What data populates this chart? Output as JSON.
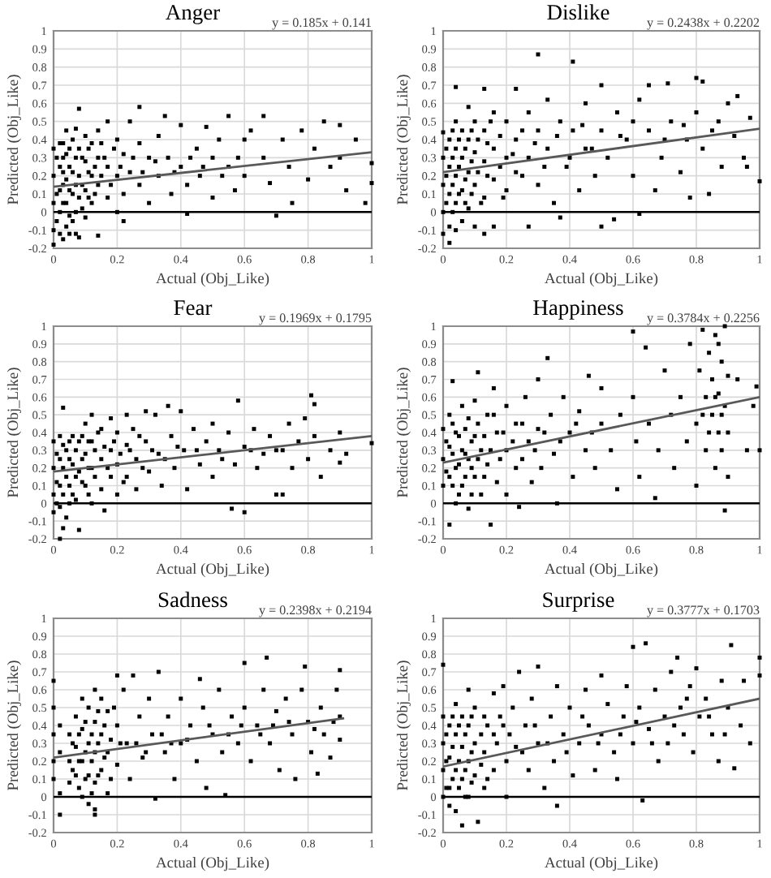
{
  "chart_data": [
    {
      "type": "scatter",
      "title": "Anger",
      "xlabel": "Actual (Obj_Like)",
      "ylabel": "Predicted (Obj_Like)",
      "annotations": [
        "y = 0.185x + 0.141"
      ],
      "xlim": [
        0,
        1
      ],
      "ylim": [
        -0.2,
        1
      ],
      "xticks": [
        0,
        0.2,
        0.4,
        0.6,
        0.8,
        1
      ],
      "yticks": [
        -0.2,
        -0.1,
        0,
        0.1,
        0.2,
        0.3,
        0.4,
        0.5,
        0.6,
        0.7,
        0.8,
        0.9,
        1
      ],
      "grid": true,
      "marker": "square",
      "ref_lines": [
        {
          "axis": "y",
          "value": 0,
          "color": "#000000"
        }
      ],
      "series": [
        {
          "color": "#000000",
          "x": [
            0,
            0,
            0,
            0,
            0,
            0.02,
            0.02,
            0.02,
            0.02,
            0.02,
            0.03,
            0.03,
            0.03,
            0.04,
            0.04,
            0.04,
            0.04,
            0.04,
            0.06,
            0.06,
            0.06,
            0.06,
            0.07,
            0.07,
            0.07,
            0.07,
            0.07,
            0.08,
            0.08,
            0.1,
            0.1,
            0.1,
            0.1,
            0.12,
            0.12,
            0.12,
            0.14,
            0.14,
            0.14,
            0.14,
            0.17,
            0.17,
            0.17,
            0.2,
            0.2,
            0.2,
            0.22,
            0.22,
            0.22,
            0.24,
            0.24,
            0.27,
            0.27,
            0.27,
            0.3,
            0.3,
            0.33,
            0.33,
            0.35,
            0.36,
            0.37,
            0.4,
            0.4,
            0.42,
            0.42,
            0.45,
            0.46,
            0.48,
            0.5,
            0.5,
            0.52,
            0.55,
            0.55,
            0.57,
            0.6,
            0.6,
            0.62,
            0.66,
            0.66,
            0.68,
            0.7,
            0.72,
            0.74,
            0.75,
            0.78,
            0.8,
            0.82,
            0.85,
            0.87,
            0.9,
            0.9,
            0.92,
            0.95,
            0.98,
            1,
            1,
            0.01,
            0.01,
            0.01,
            0.03,
            0.03,
            0.03,
            0.05,
            0.05,
            0.05,
            0.05,
            0.05,
            0.08,
            0.08,
            0.08,
            0.09,
            0.09,
            0.09,
            0.11,
            0.11,
            0.11,
            0.13,
            0.13,
            0.15,
            0.15,
            0.16,
            0.18,
            0.19,
            0.21,
            0.25,
            0.28,
            0.32,
            0.38,
            0.43,
            0.47,
            0.53,
            0.58
          ],
          "values": [
            0.35,
            0.2,
            0.05,
            -0.1,
            -0.18,
            0.38,
            0.25,
            0.12,
            0,
            -0.12,
            0.3,
            0.15,
            -0.15,
            0.45,
            0.32,
            0.18,
            0.05,
            -0.08,
            0.4,
            0.22,
            0.1,
            -0.05,
            0.46,
            0.3,
            0.15,
            0,
            -0.12,
            0.57,
            -0.14,
            0.42,
            0.28,
            0.12,
            -0.03,
            0.38,
            0.2,
            0.05,
            0.45,
            0.3,
            0.15,
            -0.13,
            0.5,
            0.25,
            0.08,
            0.4,
            0.2,
            0,
            0.32,
            0.1,
            -0.05,
            0.5,
            0.22,
            0.58,
            0.38,
            0.15,
            0.3,
            0.05,
            0.42,
            0.2,
            0.53,
            0.3,
            0.1,
            0.48,
            0.25,
            -0.01,
            0.15,
            0.35,
            0.2,
            0.47,
            0.3,
            0.08,
            0.4,
            0.53,
            0.25,
            0.12,
            0.4,
            0.2,
            0.45,
            0.53,
            0.3,
            0.16,
            -0.02,
            0.4,
            0.25,
            0.05,
            0.45,
            0.18,
            0.35,
            0.5,
            0.25,
            0.48,
            0.3,
            0.12,
            0.4,
            0.05,
            0.27,
            0.16,
            0.3,
            0.1,
            -0.05,
            0.38,
            0.22,
            0.05,
            0.35,
            0.25,
            0.12,
            -0.02,
            -0.12,
            0.35,
            0.2,
            0.08,
            0.3,
            0.15,
            0.02,
            0.35,
            0.22,
            0.08,
            0.25,
            0.1,
            0.38,
            0.2,
            0.3,
            0.15,
            0.35,
            0.25,
            0.3,
            0.22,
            0.28,
            0.22,
            0.3,
            0.25,
            0.2,
            0.3
          ]
        },
        {
          "type": "line",
          "marker": "none",
          "color": "#595959",
          "x": [
            0,
            1
          ],
          "values": [
            0.14,
            0.33
          ]
        }
      ]
    },
    {
      "type": "scatter",
      "title": "Dislike",
      "xlabel": "Actual (Obj_Like)",
      "ylabel": "Predicted (Obj_Like)",
      "annotations": [
        "y = 0.2438x + 0.2202"
      ],
      "xlim": [
        0,
        1
      ],
      "ylim": [
        -0.2,
        1
      ],
      "xticks": [
        0,
        0.2,
        0.4,
        0.6,
        0.8,
        1
      ],
      "yticks": [
        -0.2,
        -0.1,
        0,
        0.1,
        0.2,
        0.3,
        0.4,
        0.5,
        0.6,
        0.7,
        0.8,
        0.9,
        1
      ],
      "grid": true,
      "marker": "square",
      "ref_lines": [
        {
          "axis": "y",
          "value": 0,
          "color": "#000000"
        }
      ],
      "series": [
        {
          "color": "#000000",
          "x": [
            0,
            0,
            0,
            0,
            0,
            0.02,
            0.02,
            0.02,
            0.02,
            0.02,
            0.04,
            0.04,
            0.04,
            0.04,
            0.04,
            0.04,
            0.06,
            0.06,
            0.06,
            0.06,
            0.08,
            0.08,
            0.08,
            0.08,
            0.1,
            0.1,
            0.1,
            0.1,
            0.13,
            0.13,
            0.13,
            0.13,
            0.13,
            0.16,
            0.16,
            0.16,
            0.16,
            0.2,
            0.2,
            0.2,
            0.23,
            0.23,
            0.23,
            0.27,
            0.27,
            0.27,
            0.3,
            0.3,
            0.3,
            0.33,
            0.33,
            0.35,
            0.37,
            0.37,
            0.39,
            0.41,
            0.41,
            0.43,
            0.45,
            0.45,
            0.48,
            0.5,
            0.5,
            0.5,
            0.52,
            0.54,
            0.55,
            0.58,
            0.6,
            0.62,
            0.62,
            0.65,
            0.65,
            0.67,
            0.69,
            0.71,
            0.72,
            0.75,
            0.77,
            0.78,
            0.8,
            0.8,
            0.82,
            0.82,
            0.84,
            0.87,
            0.88,
            0.9,
            0.92,
            0.93,
            0.95,
            0.96,
            0.97,
            1,
            0.01,
            0.01,
            0.01,
            0.03,
            0.03,
            0.03,
            0.03,
            0.05,
            0.05,
            0.05,
            0.07,
            0.07,
            0.07,
            0.09,
            0.09,
            0.09,
            0.11,
            0.11,
            0.12,
            0.14,
            0.14,
            0.15,
            0.18,
            0.18,
            0.19,
            0.22,
            0.25,
            0.25,
            0.29,
            0.32,
            0.36,
            0.4,
            0.44,
            0.47,
            0.56,
            0.6,
            0.7,
            0.76,
            0.85
          ],
          "values": [
            0.44,
            0.3,
            0.15,
            0,
            -0.12,
            0.4,
            0.25,
            0.1,
            -0.08,
            -0.17,
            0.69,
            0.5,
            0.35,
            0.2,
            0.05,
            -0.1,
            0.45,
            0.3,
            0.12,
            -0.05,
            0.58,
            0.4,
            0.22,
            0.02,
            0.5,
            0.33,
            0.15,
            -0.08,
            0.68,
            0.45,
            0.28,
            0.08,
            -0.12,
            0.55,
            0.35,
            0.18,
            -0.08,
            0.5,
            0.3,
            0.12,
            0.68,
            0.4,
            0.22,
            0.55,
            0.3,
            -0.08,
            0.87,
            0.45,
            0.15,
            0.62,
            0.35,
            0.05,
            0.5,
            -0.03,
            0.25,
            0.83,
            0.45,
            0.12,
            0.6,
            0.35,
            0.2,
            0.7,
            0.45,
            -0.08,
            0.3,
            -0.04,
            0.55,
            0.4,
            0.2,
            -0.01,
            0.62,
            0.7,
            0.45,
            0.12,
            0.3,
            0.71,
            0.5,
            0.22,
            0.4,
            0.08,
            0.74,
            0.55,
            0.72,
            0.35,
            0.1,
            0.5,
            0.25,
            0.6,
            0.42,
            0.64,
            0.3,
            0.25,
            0.52,
            0.17,
            0.35,
            0.2,
            0.05,
            0.45,
            0.3,
            0.15,
            0,
            0.4,
            0.25,
            0.1,
            0.35,
            0.18,
            0.05,
            0.45,
            0.28,
            0.1,
            0.4,
            0.22,
            0.05,
            0.38,
            0.2,
            0.5,
            0.42,
            0.25,
            0.08,
            0.32,
            0.45,
            0.2,
            0.38,
            0.25,
            0.42,
            0.3,
            0.48,
            0.35,
            0.42,
            0.5,
            0.4,
            0.48,
            0.45
          ]
        },
        {
          "type": "line",
          "marker": "none",
          "color": "#595959",
          "x": [
            0,
            1
          ],
          "values": [
            0.22,
            0.46
          ]
        }
      ]
    },
    {
      "type": "scatter",
      "title": "Fear",
      "xlabel": "Actual (Obj_Like)",
      "ylabel": "Predicted (Obj_Like)",
      "annotations": [
        "y = 0.1969x + 0.1795"
      ],
      "xlim": [
        0,
        1
      ],
      "ylim": [
        -0.2,
        1
      ],
      "xticks": [
        0,
        0.2,
        0.4,
        0.6,
        0.8,
        1
      ],
      "yticks": [
        -0.2,
        -0.1,
        0,
        0.1,
        0.2,
        0.3,
        0.4,
        0.5,
        0.6,
        0.7,
        0.8,
        0.9,
        1
      ],
      "grid": true,
      "marker": "square",
      "ref_lines": [
        {
          "axis": "y",
          "value": 0,
          "color": "#000000"
        }
      ],
      "series": [
        {
          "color": "#000000",
          "x": [
            0,
            0,
            0,
            0,
            0.02,
            0.02,
            0.02,
            0.02,
            0.02,
            0.03,
            0.03,
            0.04,
            0.04,
            0.04,
            0.06,
            0.06,
            0.06,
            0.08,
            0.08,
            0.08,
            0.1,
            0.1,
            0.1,
            0.12,
            0.12,
            0.12,
            0.12,
            0.15,
            0.15,
            0.15,
            0.16,
            0.18,
            0.18,
            0.18,
            0.2,
            0.2,
            0.2,
            0.23,
            0.23,
            0.23,
            0.25,
            0.26,
            0.26,
            0.29,
            0.29,
            0.3,
            0.32,
            0.33,
            0.34,
            0.36,
            0.37,
            0.38,
            0.4,
            0.41,
            0.42,
            0.44,
            0.46,
            0.48,
            0.5,
            0.5,
            0.52,
            0.55,
            0.56,
            0.57,
            0.58,
            0.6,
            0.6,
            0.63,
            0.64,
            0.66,
            0.68,
            0.7,
            0.72,
            0.72,
            0.74,
            0.75,
            0.77,
            0.79,
            0.8,
            0.81,
            0.82,
            0.82,
            0.84,
            0.87,
            0.9,
            0.9,
            0.92,
            1,
            0.01,
            0.01,
            0.01,
            0.03,
            0.03,
            0.03,
            0.05,
            0.05,
            0.05,
            0.05,
            0.07,
            0.07,
            0.07,
            0.09,
            0.09,
            0.09,
            0.11,
            0.11,
            0.11,
            0.13,
            0.13,
            0.14,
            0.16,
            0.17,
            0.19,
            0.21,
            0.22,
            0.24,
            0.27,
            0.28,
            0.31,
            0.35,
            0.39,
            0.45,
            0.53,
            0.62,
            0.7
          ],
          "values": [
            0.35,
            0.2,
            0.05,
            -0.05,
            0.38,
            0.25,
            0.1,
            -0.02,
            -0.2,
            0.54,
            -0.14,
            0.3,
            0.15,
            -0.08,
            0.38,
            0.22,
            0.05,
            0.35,
            0.18,
            -0.15,
            0.45,
            0.28,
            0.1,
            0.5,
            0.35,
            0.2,
            0,
            0.42,
            0.25,
            0.08,
            -0.04,
            0.48,
            0.3,
            0.15,
            0.4,
            0.22,
            0.05,
            0.5,
            0.33,
            0.15,
            0.42,
            0.25,
            0.08,
            0.52,
            0.35,
            0.18,
            0.5,
            0.28,
            0.1,
            0.55,
            0.38,
            0.2,
            0.52,
            0.3,
            0.08,
            0.42,
            0.22,
            0.35,
            0.45,
            0.15,
            0.3,
            0.4,
            -0.03,
            0.22,
            0.58,
            -0.05,
            0.32,
            0.42,
            0.2,
            0.28,
            0.38,
            0.05,
            0.05,
            0.3,
            0.45,
            0.2,
            0.35,
            0.48,
            0.25,
            0.61,
            0.56,
            0.38,
            0.15,
            0.3,
            0.23,
            0.4,
            0.28,
            0.34,
            0.28,
            0.12,
            0,
            0.33,
            0.2,
            0.05,
            0.35,
            0.25,
            0.1,
            0,
            0.3,
            0.15,
            0.02,
            0.38,
            0.25,
            0.12,
            0.35,
            0.2,
            0.05,
            0.3,
            0.15,
            0.4,
            0.32,
            0.2,
            0.35,
            0.28,
            0.12,
            0.3,
            0.38,
            0.2,
            0.3,
            0.25,
            0.32,
            0.3,
            0.25,
            0.3,
            0.3
          ]
        },
        {
          "type": "line",
          "marker": "none",
          "color": "#595959",
          "x": [
            0,
            1
          ],
          "values": [
            0.18,
            0.38
          ]
        }
      ]
    },
    {
      "type": "scatter",
      "title": "Happiness",
      "xlabel": "Actual (Obj_Like)",
      "ylabel": "Predicted (Obj_Like)",
      "annotations": [
        "y = 0.3784x + 0.2256"
      ],
      "xlim": [
        0,
        1
      ],
      "ylim": [
        -0.2,
        1
      ],
      "xticks": [
        0,
        0.2,
        0.4,
        0.6,
        0.8,
        1
      ],
      "yticks": [
        -0.2,
        -0.1,
        0,
        0.1,
        0.2,
        0.3,
        0.4,
        0.5,
        0.6,
        0.7,
        0.8,
        0.9,
        1
      ],
      "grid": true,
      "marker": "square",
      "ref_lines": [
        {
          "axis": "y",
          "value": 0,
          "color": "#000000"
        }
      ],
      "series": [
        {
          "color": "#000000",
          "x": [
            0,
            0,
            0,
            0.02,
            0.02,
            0.02,
            0.02,
            0.03,
            0.04,
            0.04,
            0.04,
            0.06,
            0.06,
            0.06,
            0.08,
            0.08,
            0.08,
            0.1,
            0.1,
            0.1,
            0.11,
            0.12,
            0.12,
            0.14,
            0.14,
            0.15,
            0.16,
            0.17,
            0.17,
            0.2,
            0.2,
            0.2,
            0.23,
            0.23,
            0.24,
            0.26,
            0.27,
            0.28,
            0.3,
            0.3,
            0.31,
            0.33,
            0.34,
            0.35,
            0.36,
            0.38,
            0.4,
            0.41,
            0.43,
            0.45,
            0.46,
            0.48,
            0.5,
            0.5,
            0.53,
            0.55,
            0.56,
            0.6,
            0.6,
            0.61,
            0.62,
            0.64,
            0.65,
            0.67,
            0.68,
            0.7,
            0.72,
            0.73,
            0.75,
            0.77,
            0.78,
            0.8,
            0.8,
            0.81,
            0.82,
            0.83,
            0.83,
            0.84,
            0.85,
            0.85,
            0.86,
            0.86,
            0.87,
            0.87,
            0.88,
            0.88,
            0.89,
            0.89,
            0.89,
            0.9,
            0.9,
            0.93,
            0.96,
            0.98,
            0.99,
            1,
            0.01,
            0.01,
            0.03,
            0.03,
            0.03,
            0.05,
            0.05,
            0.05,
            0.07,
            0.07,
            0.07,
            0.09,
            0.09,
            0.09,
            0.11,
            0.11,
            0.13,
            0.13,
            0.15,
            0.16,
            0.18,
            0.19,
            0.22,
            0.25,
            0.25,
            0.29,
            0.32,
            0.37,
            0.42,
            0.47,
            0.82,
            0.84,
            0.86,
            0.87,
            0.88,
            0.9
          ],
          "values": [
            0.42,
            0.25,
            0.1,
            0.5,
            0.32,
            0.15,
            -0.12,
            0.69,
            0.4,
            0.2,
            0,
            0.55,
            0.3,
            0.1,
            0.48,
            0.25,
            -0.03,
            0.58,
            0.38,
            0.15,
            0.74,
            0.3,
            0.05,
            0.5,
            0.22,
            -0.12,
            0.65,
            0.4,
            0.12,
            0.55,
            0.3,
            0.05,
            0.45,
            0.2,
            -0.02,
            0.6,
            0.35,
            0.12,
            0.7,
            0.42,
            0.2,
            0.82,
            0.5,
            0.28,
            0,
            0.6,
            0.4,
            0.15,
            0.52,
            0.3,
            0.72,
            0.2,
            0.45,
            0.65,
            0.3,
            0.08,
            0.5,
            0.97,
            0.6,
            0.35,
            0.15,
            0.88,
            0.45,
            0.03,
            0.3,
            0.75,
            0.5,
            0.2,
            0.6,
            0.35,
            0.9,
            0.1,
            0.45,
            0.75,
            0.98,
            0.3,
            0.6,
            0.85,
            0.5,
            0.7,
            0.2,
            0.95,
            0.4,
            0.62,
            0.8,
            0.3,
            1,
            -0.04,
            0.55,
            0.72,
            0.15,
            0.7,
            0.3,
            0.55,
            0.66,
            0.3,
            0.35,
            0.18,
            0.45,
            0.28,
            0.1,
            0.38,
            0.22,
            0.05,
            0.42,
            0.28,
            0.15,
            0.35,
            0.2,
            0.05,
            0.45,
            0.25,
            0.38,
            0.15,
            0.3,
            0.5,
            0.25,
            0.4,
            0.35,
            0.45,
            0.25,
            0.3,
            0.4,
            0.35,
            0.45,
            0.4,
            0.5,
            0.4,
            0.6,
            0.9,
            0.5,
            0.4
          ]
        },
        {
          "type": "line",
          "marker": "none",
          "color": "#595959",
          "x": [
            0,
            1
          ],
          "values": [
            0.23,
            0.6
          ]
        }
      ]
    },
    {
      "type": "scatter",
      "title": "Sadness",
      "xlabel": "Actual (Obj_Like)",
      "ylabel": "Predicted (Obj_Like)",
      "annotations": [
        "y = 0.2398x + 0.2194"
      ],
      "xlim": [
        0,
        1
      ],
      "ylim": [
        -0.2,
        1
      ],
      "xticks": [
        0,
        0.2,
        0.4,
        0.6,
        0.8,
        1
      ],
      "yticks": [
        -0.2,
        -0.1,
        0,
        0.1,
        0.2,
        0.3,
        0.4,
        0.5,
        0.6,
        0.7,
        0.8,
        0.9,
        1
      ],
      "grid": true,
      "marker": "square",
      "ref_lines": [
        {
          "axis": "y",
          "value": 0,
          "color": "#000000"
        }
      ],
      "series": [
        {
          "color": "#000000",
          "x": [
            0,
            0,
            0,
            0,
            0,
            0.02,
            0.02,
            0.02,
            0.02,
            0.05,
            0.05,
            0.05,
            0.07,
            0.07,
            0.07,
            0.09,
            0.09,
            0.09,
            0.09,
            0.11,
            0.11,
            0.11,
            0.11,
            0.13,
            0.13,
            0.13,
            0.13,
            0.13,
            0.13,
            0.15,
            0.15,
            0.15,
            0.17,
            0.17,
            0.17,
            0.2,
            0.2,
            0.2,
            0.22,
            0.23,
            0.24,
            0.25,
            0.27,
            0.28,
            0.3,
            0.31,
            0.32,
            0.33,
            0.35,
            0.36,
            0.38,
            0.4,
            0.4,
            0.43,
            0.45,
            0.46,
            0.47,
            0.48,
            0.5,
            0.52,
            0.53,
            0.54,
            0.56,
            0.58,
            0.6,
            0.6,
            0.62,
            0.64,
            0.66,
            0.67,
            0.68,
            0.7,
            0.71,
            0.73,
            0.75,
            0.76,
            0.78,
            0.79,
            0.8,
            0.81,
            0.83,
            0.84,
            0.85,
            0.87,
            0.89,
            0.9,
            0.9,
            0.9,
            0.06,
            0.06,
            0.08,
            0.08,
            0.08,
            0.1,
            0.1,
            0.1,
            0.12,
            0.12,
            0.12,
            0.14,
            0.14,
            0.14,
            0.16,
            0.16,
            0.18,
            0.18,
            0.19,
            0.21,
            0.26,
            0.29,
            0.34,
            0.37,
            0.42,
            0.49,
            0.55,
            0.59,
            0.65,
            0.69,
            0.74,
            0.82,
            0.88
          ],
          "values": [
            0.65,
            0.5,
            0.35,
            0.2,
            0.1,
            0.4,
            0.25,
            0.02,
            -0.1,
            0.35,
            0.2,
            0.08,
            0.45,
            0.28,
            0.12,
            0.55,
            0.38,
            0.2,
            0,
            0.5,
            0.3,
            0.12,
            -0.04,
            0.6,
            0.42,
            0.25,
            0.08,
            -0.1,
            -0.07,
            0.55,
            0.35,
            0.15,
            0.48,
            0.25,
            0.02,
            0.68,
            0.4,
            0.18,
            0.6,
            0.3,
            0.1,
            0.68,
            0.45,
            0.22,
            0.55,
            0.35,
            -0.01,
            0.7,
            0.25,
            0.45,
            0.1,
            0.55,
            0.3,
            0.4,
            0.2,
            0.66,
            0.5,
            0.05,
            0.35,
            0.6,
            0.25,
            0.01,
            0.45,
            0.3,
            0.75,
            0.5,
            0.2,
            0.4,
            0.6,
            0.78,
            0.3,
            0.48,
            0.15,
            0.55,
            0.35,
            0.1,
            0.6,
            0.73,
            0.42,
            0.25,
            0.13,
            0.5,
            0.35,
            0.22,
            0.6,
            0.71,
            0.45,
            0.32,
            0.3,
            0.15,
            0.35,
            0.2,
            0.05,
            0.42,
            0.25,
            0.1,
            0.35,
            0.2,
            0.02,
            0.48,
            0.3,
            0.12,
            0.4,
            0.22,
            0.32,
            0.1,
            0.5,
            0.3,
            0.3,
            0.25,
            0.35,
            0.3,
            0.32,
            0.4,
            0.35,
            0.4,
            0.35,
            0.4,
            0.42,
            0.38,
            0.42
          ]
        },
        {
          "type": "line",
          "marker": "none",
          "color": "#595959",
          "x": [
            0,
            0.91
          ],
          "values": [
            0.22,
            0.44
          ]
        }
      ]
    },
    {
      "type": "scatter",
      "title": "Surprise",
      "xlabel": "Actual (Obj_Like)",
      "ylabel": "Predicted (Obj_Like)",
      "annotations": [
        "y = 0.3777x + 0.1703"
      ],
      "xlim": [
        0,
        1
      ],
      "ylim": [
        -0.2,
        1
      ],
      "xticks": [
        0,
        0.2,
        0.4,
        0.6,
        0.8,
        1
      ],
      "yticks": [
        -0.2,
        -0.1,
        0,
        0.1,
        0.2,
        0.3,
        0.4,
        0.5,
        0.6,
        0.7,
        0.8,
        0.9,
        1
      ],
      "grid": true,
      "marker": "square",
      "ref_lines": [
        {
          "axis": "y",
          "value": 0,
          "color": "#000000"
        }
      ],
      "series": [
        {
          "color": "#000000",
          "x": [
            0,
            0,
            0,
            0,
            0,
            0.02,
            0.02,
            0.02,
            0.02,
            0.04,
            0.04,
            0.04,
            0.04,
            0.06,
            0.06,
            0.06,
            0.06,
            0.08,
            0.08,
            0.08,
            0.08,
            0.1,
            0.1,
            0.1,
            0.11,
            0.13,
            0.13,
            0.13,
            0.16,
            0.16,
            0.16,
            0.19,
            0.19,
            0.2,
            0.2,
            0.22,
            0.23,
            0.24,
            0.26,
            0.27,
            0.28,
            0.3,
            0.3,
            0.32,
            0.34,
            0.35,
            0.36,
            0.36,
            0.38,
            0.4,
            0.41,
            0.43,
            0.45,
            0.46,
            0.48,
            0.5,
            0.5,
            0.52,
            0.54,
            0.55,
            0.57,
            0.58,
            0.6,
            0.6,
            0.62,
            0.63,
            0.64,
            0.65,
            0.67,
            0.68,
            0.7,
            0.71,
            0.72,
            0.74,
            0.75,
            0.76,
            0.78,
            0.79,
            0.8,
            0.81,
            0.83,
            0.85,
            0.87,
            0.88,
            0.9,
            0.91,
            0.92,
            0.94,
            0.95,
            0.97,
            1,
            1,
            0.01,
            0.01,
            0.01,
            0.03,
            0.03,
            0.03,
            0.05,
            0.05,
            0.05,
            0.07,
            0.07,
            0.07,
            0.09,
            0.09,
            0.09,
            0.12,
            0.12,
            0.14,
            0.14,
            0.17,
            0.18,
            0.21,
            0.25,
            0.29,
            0.33,
            0.39,
            0.44,
            0.49,
            0.56,
            0.61,
            0.66,
            0.73,
            0.77,
            0.84,
            0.89
          ],
          "values": [
            0.74,
            0.45,
            0.3,
            0.15,
            0,
            0.4,
            0.22,
            0.05,
            -0.05,
            0.52,
            0.35,
            0.15,
            -0.08,
            0.45,
            0.28,
            0.1,
            -0.16,
            0.6,
            0.4,
            0.2,
            0,
            0.5,
            0.3,
            0.12,
            -0.14,
            0.45,
            0.25,
            0.05,
            0.58,
            0.35,
            0.15,
            0.62,
            0.4,
            0.2,
            0,
            0.5,
            0.28,
            0.7,
            0.4,
            0.15,
            0.55,
            0.73,
            0.3,
            0.05,
            0.45,
            0.2,
            -0.05,
            0.62,
            0.35,
            0.5,
            0.12,
            0.3,
            0.6,
            0.4,
            0.15,
            0.68,
            0.35,
            0.52,
            0.25,
            0.1,
            0.45,
            0.62,
            0.84,
            0.3,
            0.5,
            -0.02,
            0.86,
            0.38,
            0.6,
            0.2,
            0.45,
            0.3,
            0.7,
            0.78,
            0.5,
            0.35,
            0.62,
            0.25,
            0.72,
            0.45,
            0.55,
            0.35,
            0.2,
            0.65,
            0.5,
            0.85,
            0.16,
            0.4,
            0.65,
            0.3,
            0.78,
            0.68,
            0.35,
            0.2,
            0.05,
            0.45,
            0.28,
            0.1,
            0.4,
            0.2,
            0.05,
            0.35,
            0.15,
            0,
            0.45,
            0.25,
            0.08,
            0.35,
            0.18,
            0.4,
            0.1,
            0.3,
            0.45,
            0.35,
            0.25,
            0.4,
            0.3,
            0.25,
            0.45,
            0.3,
            0.35,
            0.42,
            0.3,
            0.4,
            0.55,
            0.45,
            0.35
          ]
        },
        {
          "type": "line",
          "marker": "none",
          "color": "#595959",
          "x": [
            0,
            1
          ],
          "values": [
            0.17,
            0.55
          ]
        }
      ]
    }
  ]
}
